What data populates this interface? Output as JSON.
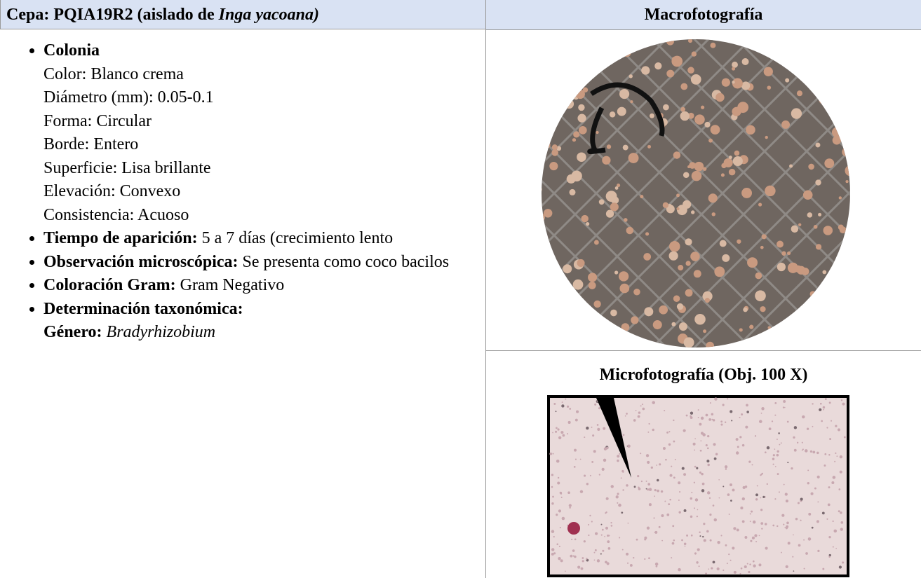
{
  "header": {
    "left": {
      "prefix": "Cepa: PQIA19R2 (aislado de",
      "italic": "Inga yacoana)"
    },
    "right": "Macrofotografía"
  },
  "items": [
    {
      "label": "Colonia",
      "lines": [
        "Color: Blanco crema",
        "Diámetro (mm): 0.05-0.1",
        "Forma: Circular",
        "Borde: Entero",
        "Superficie: Lisa brillante",
        "Elevación: Convexo",
        "Consistencia: Acuoso"
      ]
    },
    {
      "label": "Tiempo de aparición:",
      "text": "5 a 7 días (crecimiento lento"
    },
    {
      "label": "Observación microscópica:",
      "text": "Se presenta como coco bacilos"
    },
    {
      "label": "Coloración Gram:",
      "text": "Gram Negativo"
    },
    {
      "label": "Determinación taxonómica:",
      "genus_label": "Género:",
      "genus": "Bradyrhizobium"
    }
  ],
  "micro_title": "Microfotografía (Obj. 100 X)"
}
